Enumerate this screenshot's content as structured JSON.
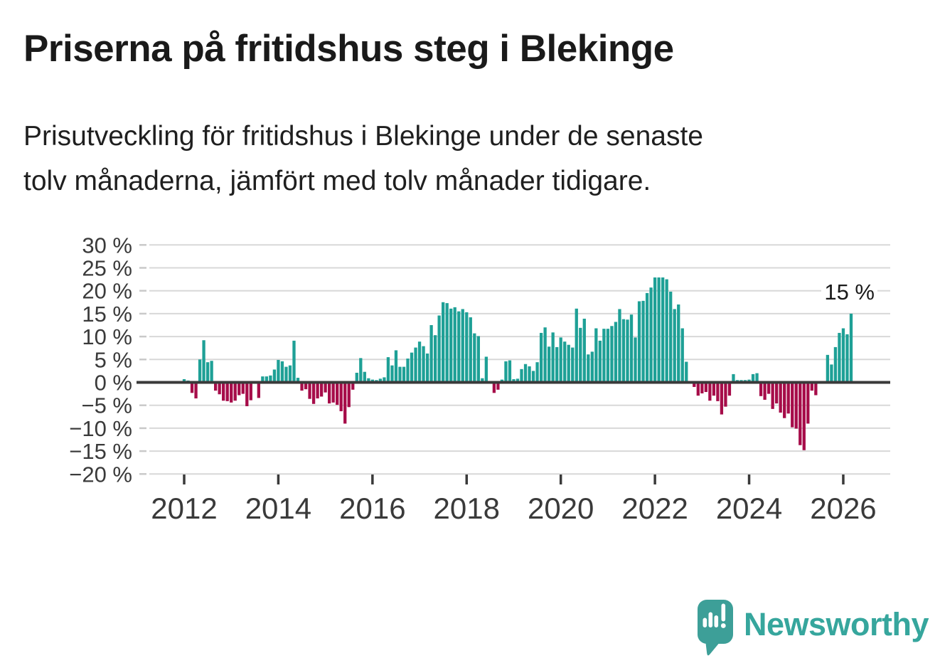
{
  "title": "Priserna på fritidshus steg i Blekinge",
  "subtitle": "Prisutveckling för fritidshus i Blekinge under de senaste\ntolv månaderna, jämfört med tolv månader tidigare.",
  "annotation": {
    "label": "15 %"
  },
  "branding": {
    "wordmark": "Newsworthy",
    "icon": "speech-bubble-bar-chart-icon"
  },
  "colors": {
    "positive": "#1ea096",
    "negative": "#a60c49",
    "grid": "#d8d8d8",
    "axis": "#3a3a3a",
    "tick_minor": "#c9c9c9",
    "label": "#3a3a3a",
    "brand": "#3d9f98"
  },
  "chart_data": {
    "type": "bar",
    "title": "Priserna på fritidshus steg i Blekinge",
    "xlabel": "",
    "ylabel": "",
    "unit": "%",
    "ylim": [
      -20,
      30
    ],
    "grid": "horizontal",
    "legend": "none",
    "start_month": "2012-01",
    "end_month": "2026-03",
    "frequency": "monthly",
    "y_ticks": [
      30,
      25,
      20,
      15,
      10,
      5,
      0,
      -5,
      -10,
      -15,
      -20
    ],
    "y_tick_labels": [
      "30 %",
      "25 %",
      "20 %",
      "15 %",
      "10 %",
      "5 %",
      "0 %",
      "−5 %",
      "−10 %",
      "−15 %",
      "−20 %"
    ],
    "x_tick_labels": [
      "2012",
      "2014",
      "2016",
      "2018",
      "2020",
      "2022",
      "2024",
      "2026"
    ],
    "last_value_label": "15 %",
    "values": [
      0.7,
      0.4,
      -2.3,
      -3.5,
      5.0,
      9.2,
      4.4,
      4.7,
      -1.8,
      -2.6,
      -4.0,
      -4.1,
      -4.4,
      -4.0,
      -2.8,
      -2.5,
      -5.2,
      -3.9,
      0.0,
      -3.4,
      1.3,
      1.3,
      1.5,
      2.8,
      4.9,
      4.6,
      3.4,
      3.7,
      9.1,
      1.0,
      -1.8,
      -1.5,
      -3.6,
      -4.7,
      -3.5,
      -3.1,
      -2.2,
      -4.6,
      -4.4,
      -4.9,
      -6.3,
      -9.0,
      -5.4,
      -1.6,
      2.1,
      5.3,
      2.3,
      0.9,
      0.6,
      0.5,
      0.8,
      1.1,
      5.5,
      3.7,
      7.0,
      3.4,
      3.4,
      5.2,
      6.5,
      7.6,
      8.9,
      7.9,
      6.3,
      12.5,
      10.3,
      14.6,
      17.5,
      17.3,
      16.1,
      16.4,
      15.5,
      16.0,
      15.3,
      14.2,
      10.7,
      10.1,
      0.9,
      5.6,
      0.0,
      -2.3,
      -1.6,
      0.6,
      4.6,
      4.8,
      0.7,
      0.8,
      2.9,
      4.0,
      3.5,
      2.5,
      4.4,
      10.8,
      12.0,
      7.8,
      10.9,
      7.7,
      9.8,
      8.9,
      8.2,
      7.6,
      16.1,
      11.9,
      13.9,
      6.1,
      6.7,
      11.8,
      9.1,
      11.7,
      11.7,
      12.3,
      13.2,
      16.0,
      13.8,
      13.7,
      14.8,
      9.8,
      17.7,
      17.8,
      19.5,
      20.7,
      22.9,
      22.9,
      22.9,
      22.5,
      19.8,
      16.0,
      17.0,
      11.8,
      4.5,
      0.0,
      -1.0,
      -2.9,
      -2.4,
      -2.1,
      -4.0,
      -2.9,
      -4.1,
      -7.0,
      -5.3,
      -2.9,
      1.8,
      0.5,
      0.5,
      0.5,
      0.6,
      1.8,
      2.0,
      -3.0,
      -3.8,
      -2.5,
      -5.8,
      -4.6,
      -6.6,
      -7.8,
      -6.8,
      -9.8,
      -10.1,
      -13.7,
      -14.8,
      -9.0,
      -1.8,
      -2.8,
      0.0,
      0.0,
      6.0,
      3.9,
      7.7,
      10.8,
      11.8,
      10.5,
      15.0
    ]
  }
}
